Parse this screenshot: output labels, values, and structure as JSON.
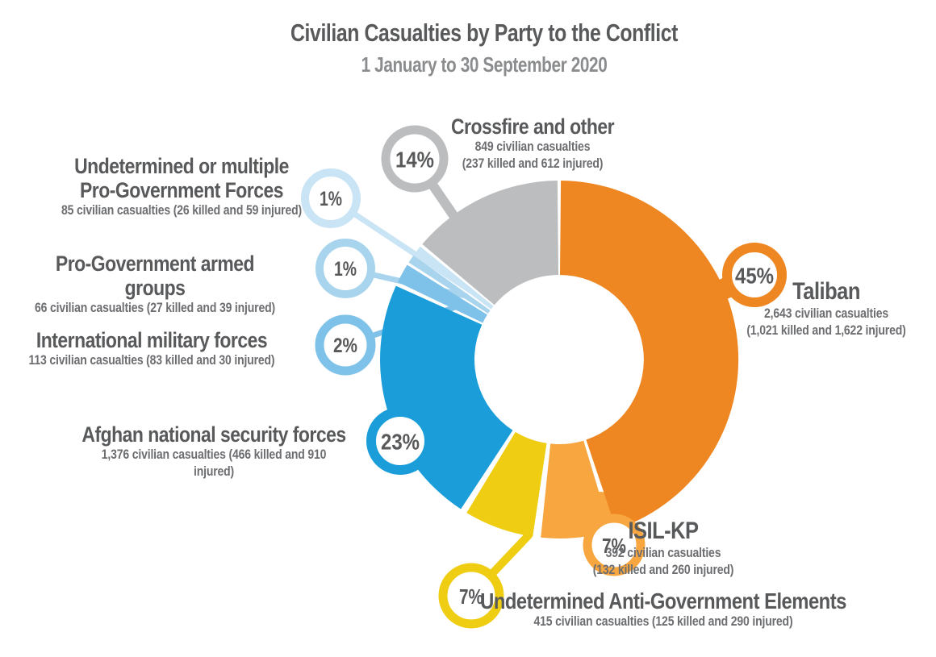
{
  "header": {
    "title": "Civilian Casualties by Party to the Conflict",
    "subtitle": "1 January to 30 September 2020"
  },
  "colors": {
    "title_text": "#58595B",
    "subtitle_text": "#8A8C8E",
    "sub_label_text": "#6D6E71",
    "percent_text": "#58595B",
    "background": "#FFFFFF"
  },
  "chart_data": {
    "type": "pie",
    "variant": "donut",
    "title": "Civilian Casualties by Party to the Conflict",
    "subtitle": "1 January to 30 September 2020",
    "unit": "percent of civilian casualties",
    "order": "clockwise from 12 o'clock",
    "segments": [
      {
        "label": "Taliban",
        "pct": 45,
        "pct_label": "45%",
        "casualties": 2643,
        "killed": 1021,
        "injured": 1622,
        "color": "#EE8722",
        "sub_lines": [
          "2,643 civilian casualties",
          "(1,021 killed and 1,622 injured)"
        ]
      },
      {
        "label": "ISIL-KP",
        "pct": 7,
        "pct_label": "7%",
        "casualties": 392,
        "killed": 132,
        "injured": 260,
        "color": "#F8A63F",
        "sub_lines": [
          "392 civilian casualties",
          "(132 killed and 260 injured)"
        ]
      },
      {
        "label": "Undetermined Anti-Government Elements",
        "pct": 7,
        "pct_label": "7%",
        "casualties": 415,
        "killed": 125,
        "injured": 290,
        "color": "#EECD12",
        "sub_lines": [
          "415 civilian casualties (125 killed and 290 injured)"
        ]
      },
      {
        "label": "Afghan national security forces",
        "pct": 23,
        "pct_label": "23%",
        "casualties": 1376,
        "killed": 466,
        "injured": 910,
        "color": "#1B9DD9",
        "sub_lines": [
          "1,376 civilian casualties (466 killed and 910 injured)"
        ]
      },
      {
        "label": "International military forces",
        "pct": 2,
        "pct_label": "2%",
        "casualties": 113,
        "killed": 83,
        "injured": 30,
        "color": "#7FC2E9",
        "sub_lines": [
          "113 civilian casualties (83 killed and 30 injured)"
        ]
      },
      {
        "label": "Pro-Government armed groups",
        "pct": 1,
        "pct_label": "1%",
        "casualties": 66,
        "killed": 27,
        "injured": 39,
        "color": "#A9D4EE",
        "sub_lines": [
          "66 civilian casualties (27 killed and 39 injured)"
        ]
      },
      {
        "label": "Undetermined or multiple Pro-Government Forces",
        "label_line1": "Undetermined or multiple",
        "label_line2": "Pro-Government Forces",
        "pct": 1,
        "pct_label": "1%",
        "casualties": 85,
        "killed": 26,
        "injured": 59,
        "color": "#C9E4F4",
        "sub_lines": [
          "85 civilian casualties (26 killed and 59 injured)"
        ]
      },
      {
        "label": "Crossfire and other",
        "pct": 14,
        "pct_label": "14%",
        "casualties": 849,
        "killed": 237,
        "injured": 612,
        "color": "#BBBDBF",
        "sub_lines": [
          "849 civilian casualties",
          "(237 killed and 612 injured)"
        ]
      }
    ]
  }
}
